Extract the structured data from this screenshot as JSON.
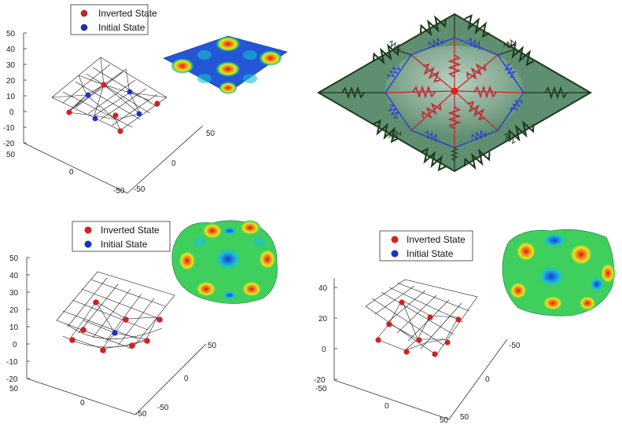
{
  "legend": {
    "inverted": "Inverted State",
    "initial": "Initial State"
  },
  "colors": {
    "inverted_marker": "#d62020",
    "initial_marker": "#1a2fd0",
    "mesh": "#1a1a1a",
    "plate_fill": "#5f8f70",
    "plate_edge": "#1e3a1e",
    "spring_dark": "#1c3a1c",
    "spring_red": "#c8202a",
    "spring_blue": "#2a3ad8"
  },
  "plots": [
    {
      "z_ticks": [
        "50",
        "40",
        "30",
        "20",
        "10",
        "0",
        "-10",
        "-20"
      ],
      "x_ticks": [
        "50",
        "0",
        "-50"
      ],
      "y_ticks": [
        "50",
        "0",
        "-50"
      ]
    },
    {
      "z_ticks": [
        "50",
        "40",
        "30",
        "20",
        "10",
        "0",
        "-10",
        "-20"
      ],
      "x_ticks": [
        "50",
        "0",
        "-50"
      ],
      "y_ticks": [
        "50",
        "0",
        "-50"
      ]
    },
    {
      "z_ticks": [
        "40",
        "20",
        "0",
        "-20"
      ],
      "x_ticks": [
        "-50",
        "0",
        "50"
      ],
      "y_ticks": [
        "-50",
        "0",
        "50"
      ]
    }
  ]
}
